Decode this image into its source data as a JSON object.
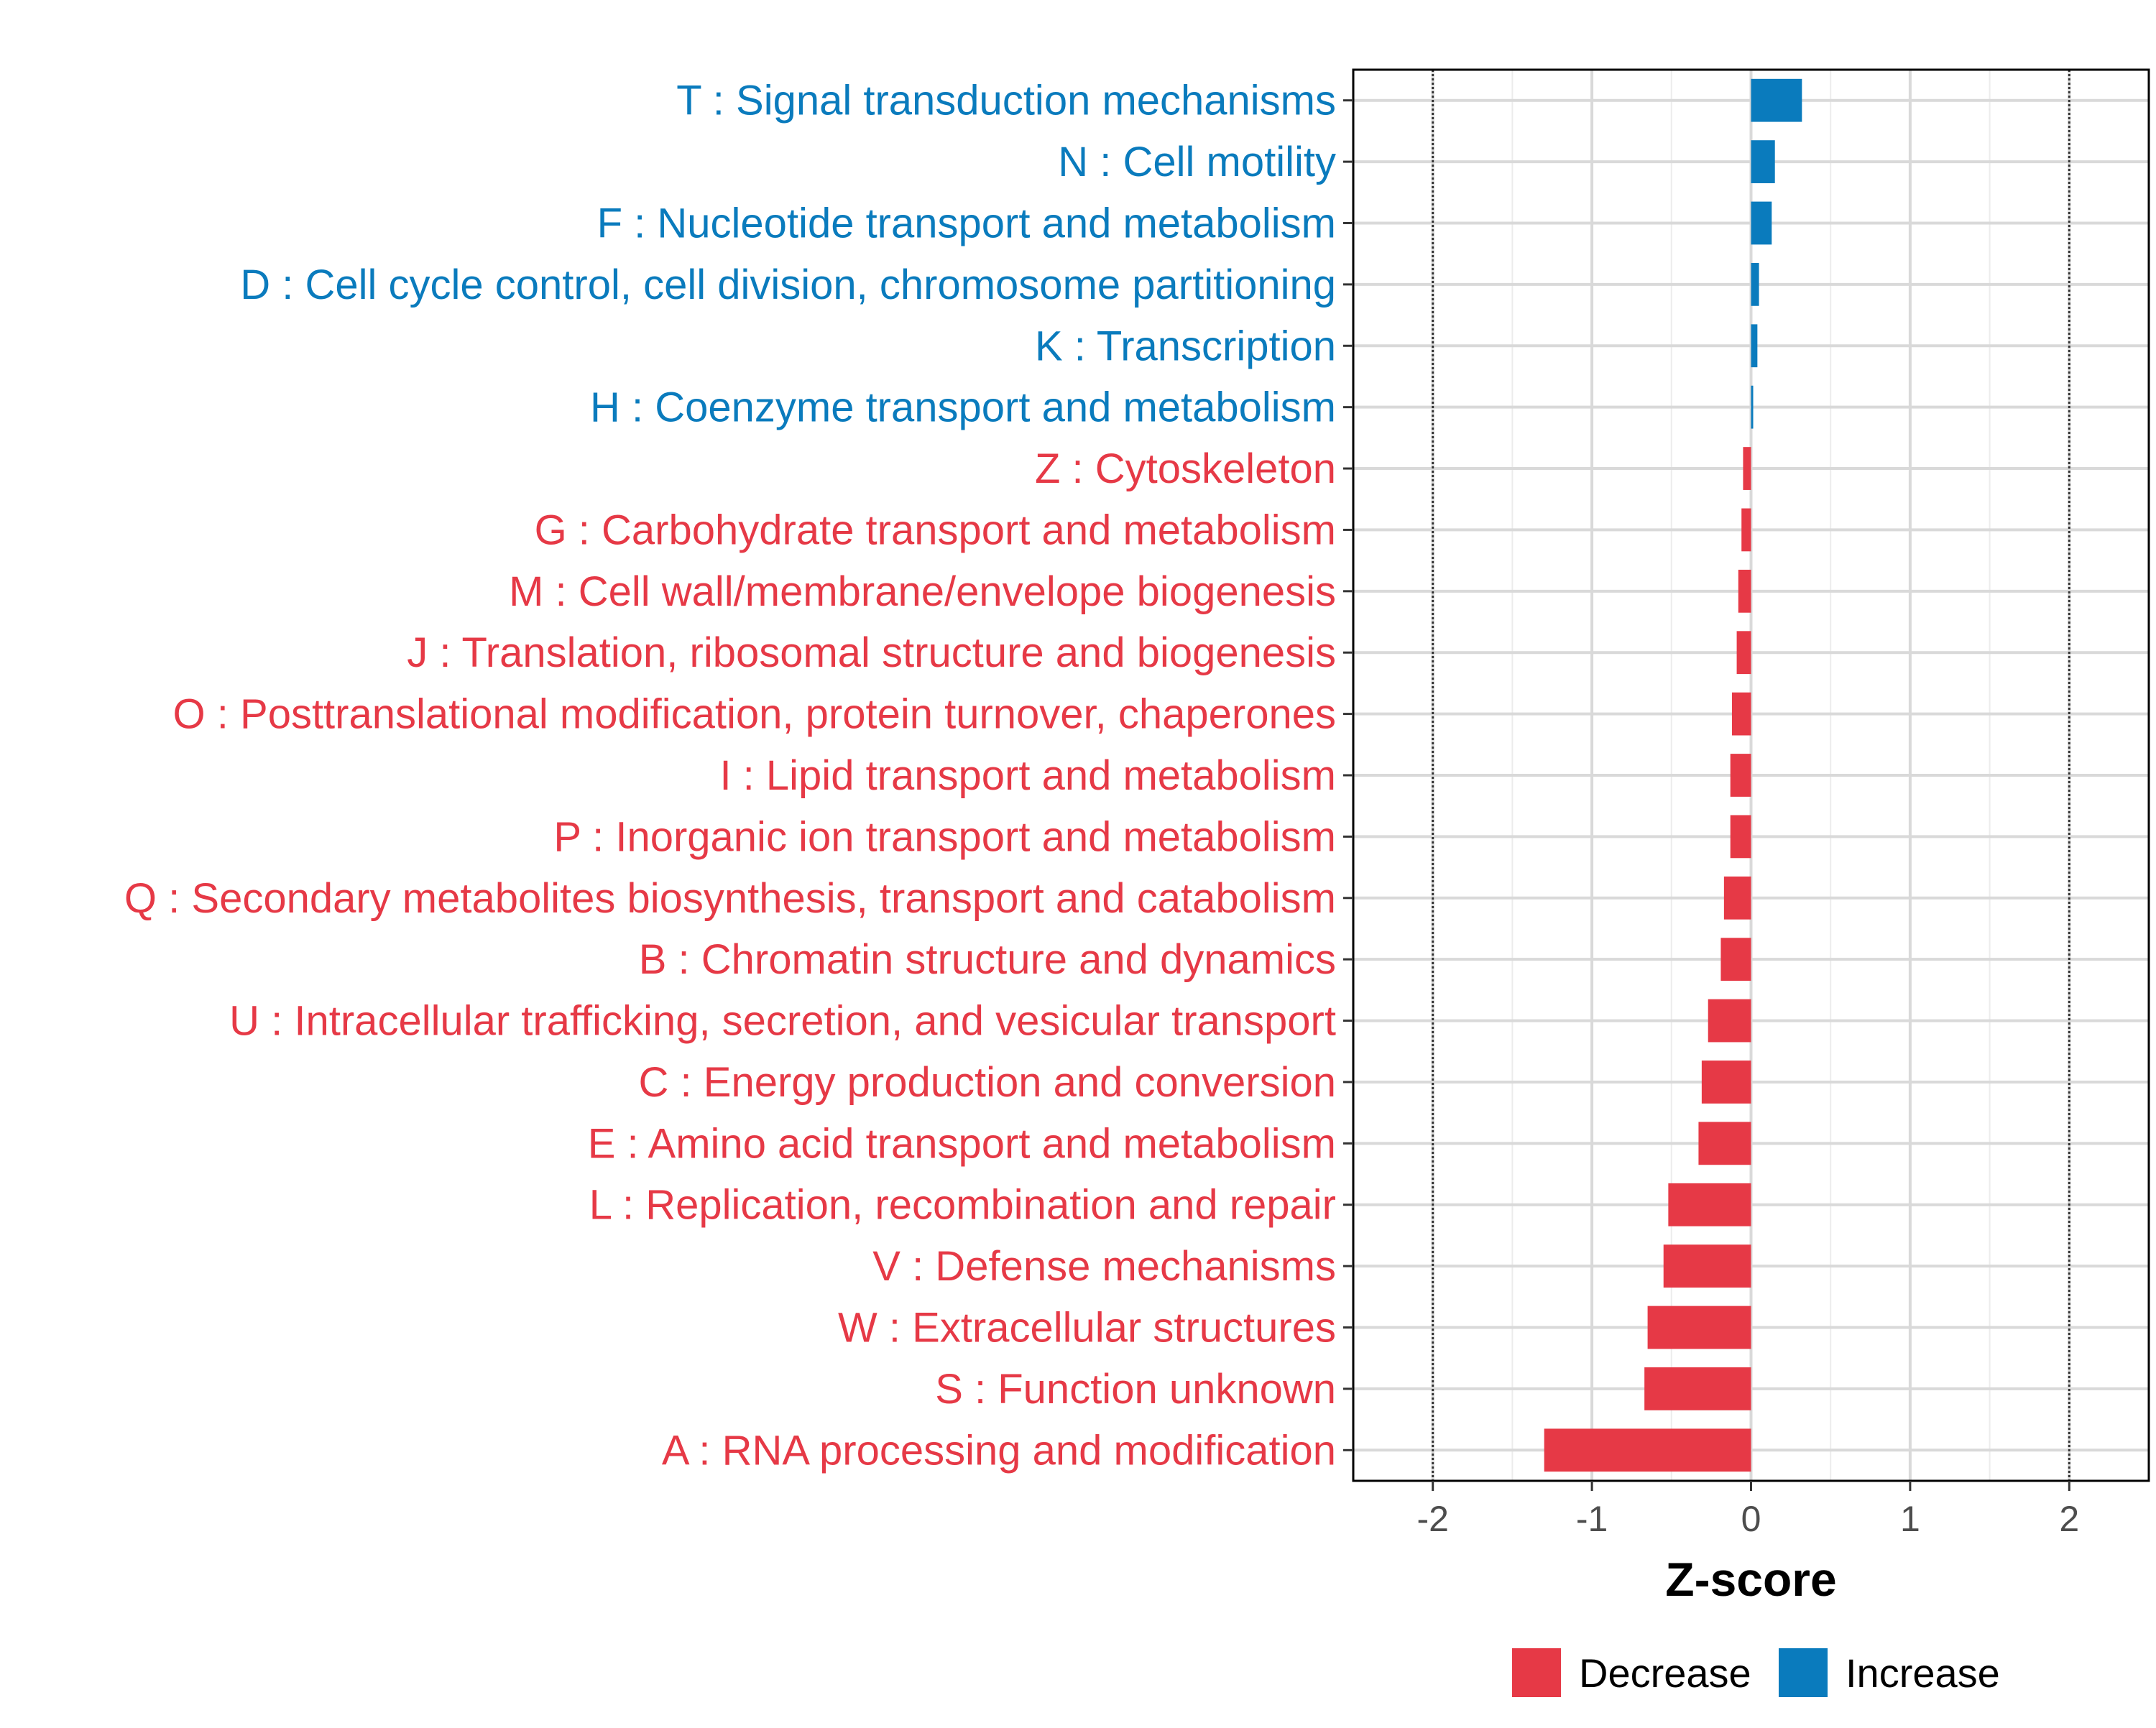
{
  "chart_data": {
    "type": "bar",
    "orientation": "horizontal",
    "title": "",
    "xlabel": "Z-score",
    "ylabel": "",
    "xlim": [
      -2.5,
      2.5
    ],
    "xticks": [
      -2,
      -1,
      0,
      1,
      2
    ],
    "xtick_labels": [
      "-2",
      "-1",
      "0",
      "1",
      "2"
    ],
    "reference_lines": [
      -2,
      2
    ],
    "grid": true,
    "colors": {
      "Decrease": "#e63946",
      "Increase": "#0a7bbd"
    },
    "legend": {
      "placement": "bottom-right",
      "entries": [
        {
          "label": "Decrease",
          "color_key": "Decrease"
        },
        {
          "label": "Increase",
          "color_key": "Increase"
        }
      ]
    },
    "bars": [
      {
        "label": "T : Signal transduction mechanisms",
        "value": 0.32,
        "group": "Increase"
      },
      {
        "label": "N : Cell motility",
        "value": 0.15,
        "group": "Increase"
      },
      {
        "label": "F : Nucleotide transport and metabolism",
        "value": 0.13,
        "group": "Increase"
      },
      {
        "label": "D : Cell cycle control, cell division, chromosome partitioning",
        "value": 0.05,
        "group": "Increase"
      },
      {
        "label": "K : Transcription",
        "value": 0.04,
        "group": "Increase"
      },
      {
        "label": "H : Coenzyme transport and metabolism",
        "value": 0.01,
        "group": "Increase"
      },
      {
        "label": "Z : Cytoskeleton",
        "value": -0.05,
        "group": "Decrease"
      },
      {
        "label": "G : Carbohydrate transport and metabolism",
        "value": -0.06,
        "group": "Decrease"
      },
      {
        "label": "M : Cell wall/membrane/envelope biogenesis",
        "value": -0.08,
        "group": "Decrease"
      },
      {
        "label": "J : Translation, ribosomal structure and biogenesis",
        "value": -0.09,
        "group": "Decrease"
      },
      {
        "label": "O : Posttranslational modification, protein turnover, chaperones",
        "value": -0.12,
        "group": "Decrease"
      },
      {
        "label": "I : Lipid transport and metabolism",
        "value": -0.13,
        "group": "Decrease"
      },
      {
        "label": "P : Inorganic ion transport and metabolism",
        "value": -0.13,
        "group": "Decrease"
      },
      {
        "label": "Q : Secondary metabolites biosynthesis, transport and catabolism",
        "value": -0.17,
        "group": "Decrease"
      },
      {
        "label": "B : Chromatin structure and dynamics",
        "value": -0.19,
        "group": "Decrease"
      },
      {
        "label": "U : Intracellular trafficking, secretion, and vesicular transport",
        "value": -0.27,
        "group": "Decrease"
      },
      {
        "label": "C : Energy production and conversion",
        "value": -0.31,
        "group": "Decrease"
      },
      {
        "label": "E : Amino acid transport and metabolism",
        "value": -0.33,
        "group": "Decrease"
      },
      {
        "label": "L : Replication, recombination and repair",
        "value": -0.52,
        "group": "Decrease"
      },
      {
        "label": "V : Defense mechanisms",
        "value": -0.55,
        "group": "Decrease"
      },
      {
        "label": "W : Extracellular structures",
        "value": -0.65,
        "group": "Decrease"
      },
      {
        "label": "S : Function unknown",
        "value": -0.67,
        "group": "Decrease"
      },
      {
        "label": "A : RNA processing and modification",
        "value": -1.3,
        "group": "Decrease"
      }
    ]
  }
}
